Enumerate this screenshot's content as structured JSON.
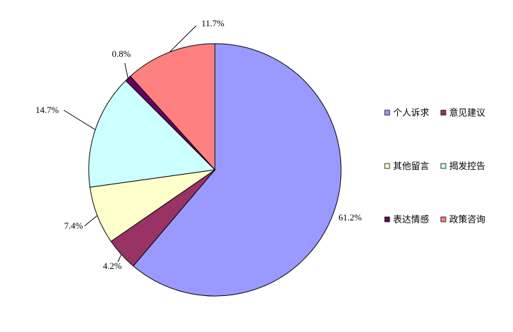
{
  "chart_data": {
    "type": "pie",
    "categories": [
      "个人诉求",
      "意见建议",
      "其他留言",
      "揭发控告",
      "表达情感",
      "政策咨询"
    ],
    "values": [
      61.2,
      4.2,
      7.4,
      14.7,
      0.8,
      11.7
    ],
    "labels": [
      "61.2%",
      "4.2%",
      "7.4%",
      "14.7%",
      "0.8%",
      "11.7%"
    ],
    "colors": [
      "#9999ff",
      "#993366",
      "#ffffcc",
      "#ccffff",
      "#660066",
      "#ff8080"
    ],
    "legend_position": "right"
  }
}
